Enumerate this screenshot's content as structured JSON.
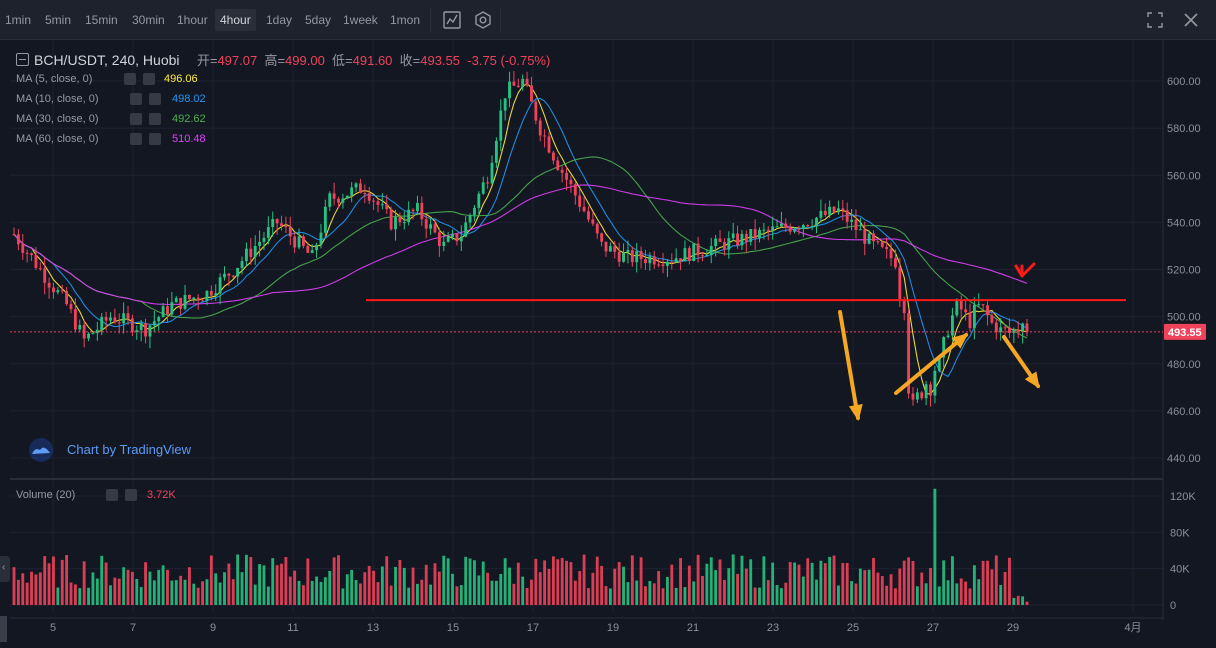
{
  "toolbar": {
    "timeframes": [
      "1min",
      "5min",
      "15min",
      "30min",
      "1hour",
      "4hour",
      "1day",
      "5day",
      "1week",
      "1mon"
    ],
    "active": "4hour",
    "icons": [
      "indicators-icon",
      "settings-icon",
      "fullscreen-icon",
      "close-icon"
    ]
  },
  "legend": {
    "title": "BCH/USDT, 240, Huobi",
    "open_label": "开=",
    "open": "497.07",
    "high_label": "高=",
    "high": "499.00",
    "low_label": "低=",
    "low": "491.60",
    "close_label": "收=",
    "close": "493.55",
    "change": "-3.75 (-0.75%)",
    "ma": [
      {
        "label": "MA (5, close, 0)",
        "value": "496.06",
        "color": "#ffeb3b"
      },
      {
        "label": "MA (10, close, 0)",
        "value": "498.02",
        "color": "#2196f3"
      },
      {
        "label": "MA (30, close, 0)",
        "value": "492.62",
        "color": "#4caf50"
      },
      {
        "label": "MA (60, close, 0)",
        "value": "510.48",
        "color": "#e040fb"
      }
    ],
    "volume_label": "Volume (20)",
    "volume_value": "3.72K"
  },
  "watermark": "Chart by TradingView",
  "price_tag": "493.55",
  "colors": {
    "up": "#26c281",
    "down": "#f0425b",
    "annotation": "#f5a623",
    "resistance": "#ff1a1a"
  },
  "chart_data": {
    "type": "candlestick",
    "price_axis": {
      "ticks": [
        "440.00",
        "460.00",
        "480.00",
        "500.00",
        "520.00",
        "540.00",
        "560.00",
        "580.00",
        "600.00"
      ],
      "range": [
        432,
        612
      ]
    },
    "volume_axis": {
      "ticks": [
        "0",
        "40K",
        "80K",
        "120K"
      ],
      "range": [
        0,
        130000
      ]
    },
    "x_ticks": [
      "5",
      "7",
      "9",
      "11",
      "13",
      "15",
      "17",
      "19",
      "21",
      "23",
      "25",
      "27",
      "29",
      "4月"
    ],
    "last_price": 493.55,
    "resistance_level": 507
  }
}
